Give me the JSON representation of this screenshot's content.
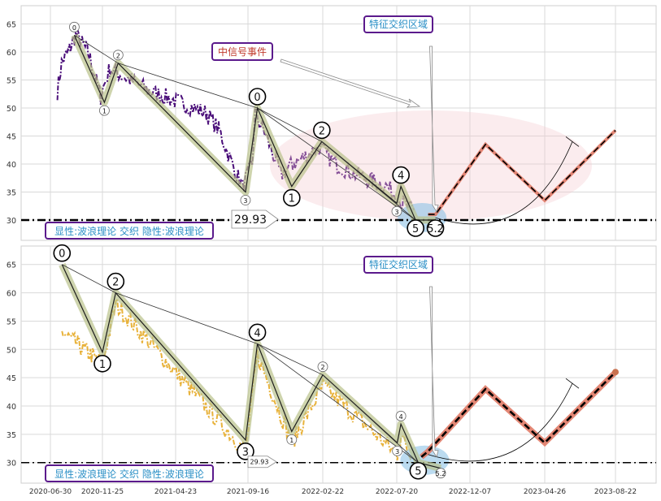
{
  "chart_data": [
    {
      "type": "line",
      "panel": "top",
      "ylim": [
        26.5,
        68
      ],
      "yticks": [
        30,
        35,
        40,
        45,
        50,
        55,
        60,
        65
      ],
      "xticks": [
        "2020-06-30",
        "2020-11-25",
        "2021-04-23",
        "2021-09-16",
        "2022-02-22",
        "2022-07-20",
        "2022-12-07",
        "2023-04-26",
        "2023-08-22"
      ],
      "grid": true,
      "price_series_color": "#4b0f7a",
      "price_keypoints": [
        [
          "2020-07-20",
          53
        ],
        [
          "2020-08-01",
          58
        ],
        [
          "2020-08-20",
          60
        ],
        [
          "2020-09-10",
          63
        ],
        [
          "2020-10-15",
          60
        ],
        [
          "2020-11-20",
          52
        ],
        [
          "2020-12-10",
          57
        ],
        [
          "2021-01-20",
          55
        ],
        [
          "2021-03-01",
          53
        ],
        [
          "2021-05-01",
          51
        ],
        [
          "2021-06-25",
          49
        ],
        [
          "2021-07-20",
          46
        ],
        [
          "2021-08-15",
          40
        ],
        [
          "2021-09-05",
          36
        ],
        [
          "2021-09-25",
          40
        ],
        [
          "2021-10-01",
          49
        ],
        [
          "2021-10-25",
          45
        ],
        [
          "2021-11-25",
          38
        ],
        [
          "2021-12-20",
          40
        ],
        [
          "2022-02-15",
          43
        ],
        [
          "2022-03-20",
          40
        ],
        [
          "2022-05-01",
          38
        ],
        [
          "2022-06-01",
          37
        ],
        [
          "2022-07-01",
          36
        ],
        [
          "2022-08-01",
          33
        ],
        [
          "2022-08-25",
          31
        ]
      ],
      "wave_points": [
        {
          "label": "0",
          "date": "2020-09-06",
          "value": 63
        },
        {
          "label": "1",
          "date": "2020-11-29",
          "value": 51
        },
        {
          "label": "2",
          "date": "2020-12-27",
          "value": 58
        },
        {
          "label": "3",
          "date": "2021-09-11",
          "value": 35
        },
        {
          "label": "0",
          "date": "2021-10-06",
          "value": 50
        },
        {
          "label": "1",
          "date": "2021-12-18",
          "value": 36
        },
        {
          "label": "2",
          "date": "2022-02-20",
          "value": 44
        },
        {
          "label": "3",
          "date": "2022-07-20",
          "value": 33
        },
        {
          "label": "4",
          "date": "2022-07-28",
          "value": 36
        },
        {
          "label": "5",
          "date": "2022-08-25",
          "value": 30
        },
        {
          "label": "5.2",
          "date": "2022-10-02",
          "value": 30
        }
      ],
      "forecast_points": [
        [
          "2022-09-18",
          31
        ],
        [
          "2022-10-02",
          31
        ],
        [
          "2023-01-05",
          43.5
        ],
        [
          "2023-04-26",
          33.5
        ],
        [
          "2023-08-22",
          46
        ]
      ],
      "hline": 30,
      "price_box": "29.93",
      "annotations": {
        "signal_event": "中信号事件",
        "feature_zone": "特征交织区域",
        "legend_text": "显性:波浪理论 交织 隐性:波浪理论"
      },
      "colors": {
        "signal_event": "#c0392b",
        "feature_zone": "#2a8fc6",
        "legend": "#2a8fc6",
        "frame": "#5b1a8c"
      }
    },
    {
      "type": "line",
      "panel": "bottom",
      "ylim": [
        26.5,
        68
      ],
      "yticks": [
        30,
        35,
        40,
        45,
        50,
        55,
        60,
        65
      ],
      "xticks": [
        "2020-06-30",
        "2020-11-25",
        "2021-04-23",
        "2021-09-16",
        "2022-02-22",
        "2022-07-20",
        "2022-12-07",
        "2023-04-26",
        "2023-08-22"
      ],
      "grid": true,
      "price_series_color": "#e8b23a",
      "wave_points": [
        {
          "label": "0",
          "date": "2020-08-02",
          "value": 65
        },
        {
          "label": "1",
          "date": "2020-11-25",
          "value": 49.5
        },
        {
          "label": "2",
          "date": "2020-12-22",
          "value": 60
        },
        {
          "label": "3",
          "date": "2021-09-11",
          "value": 34
        },
        {
          "label": "4",
          "date": "2021-10-06",
          "value": 51
        },
        {
          "label": "1",
          "date": "2021-12-18",
          "value": 35.5
        },
        {
          "label": "2",
          "date": "2022-02-22",
          "value": 45.5
        },
        {
          "label": "3",
          "date": "2022-07-21",
          "value": 33.5
        },
        {
          "label": "4",
          "date": "2022-07-28",
          "value": 36.8
        },
        {
          "label": "5",
          "date": "2022-08-30",
          "value": 30
        },
        {
          "label": "5.2",
          "date": "2022-10-12",
          "value": 29
        }
      ],
      "forecast_points": [
        [
          "2022-09-05",
          31
        ],
        [
          "2022-09-18",
          32
        ],
        [
          "2023-01-05",
          43
        ],
        [
          "2023-04-26",
          33.5
        ],
        [
          "2023-08-22",
          46
        ]
      ],
      "hline": 30,
      "price_box": "29.93",
      "annotations": {
        "feature_zone": "特征交织区域",
        "legend_text": "显性:波浪理论 交织 隐性:波浪理论"
      },
      "colors": {
        "feature_zone": "#2a8fc6",
        "legend": "#2a8fc6",
        "frame": "#5b1a8c"
      }
    }
  ]
}
